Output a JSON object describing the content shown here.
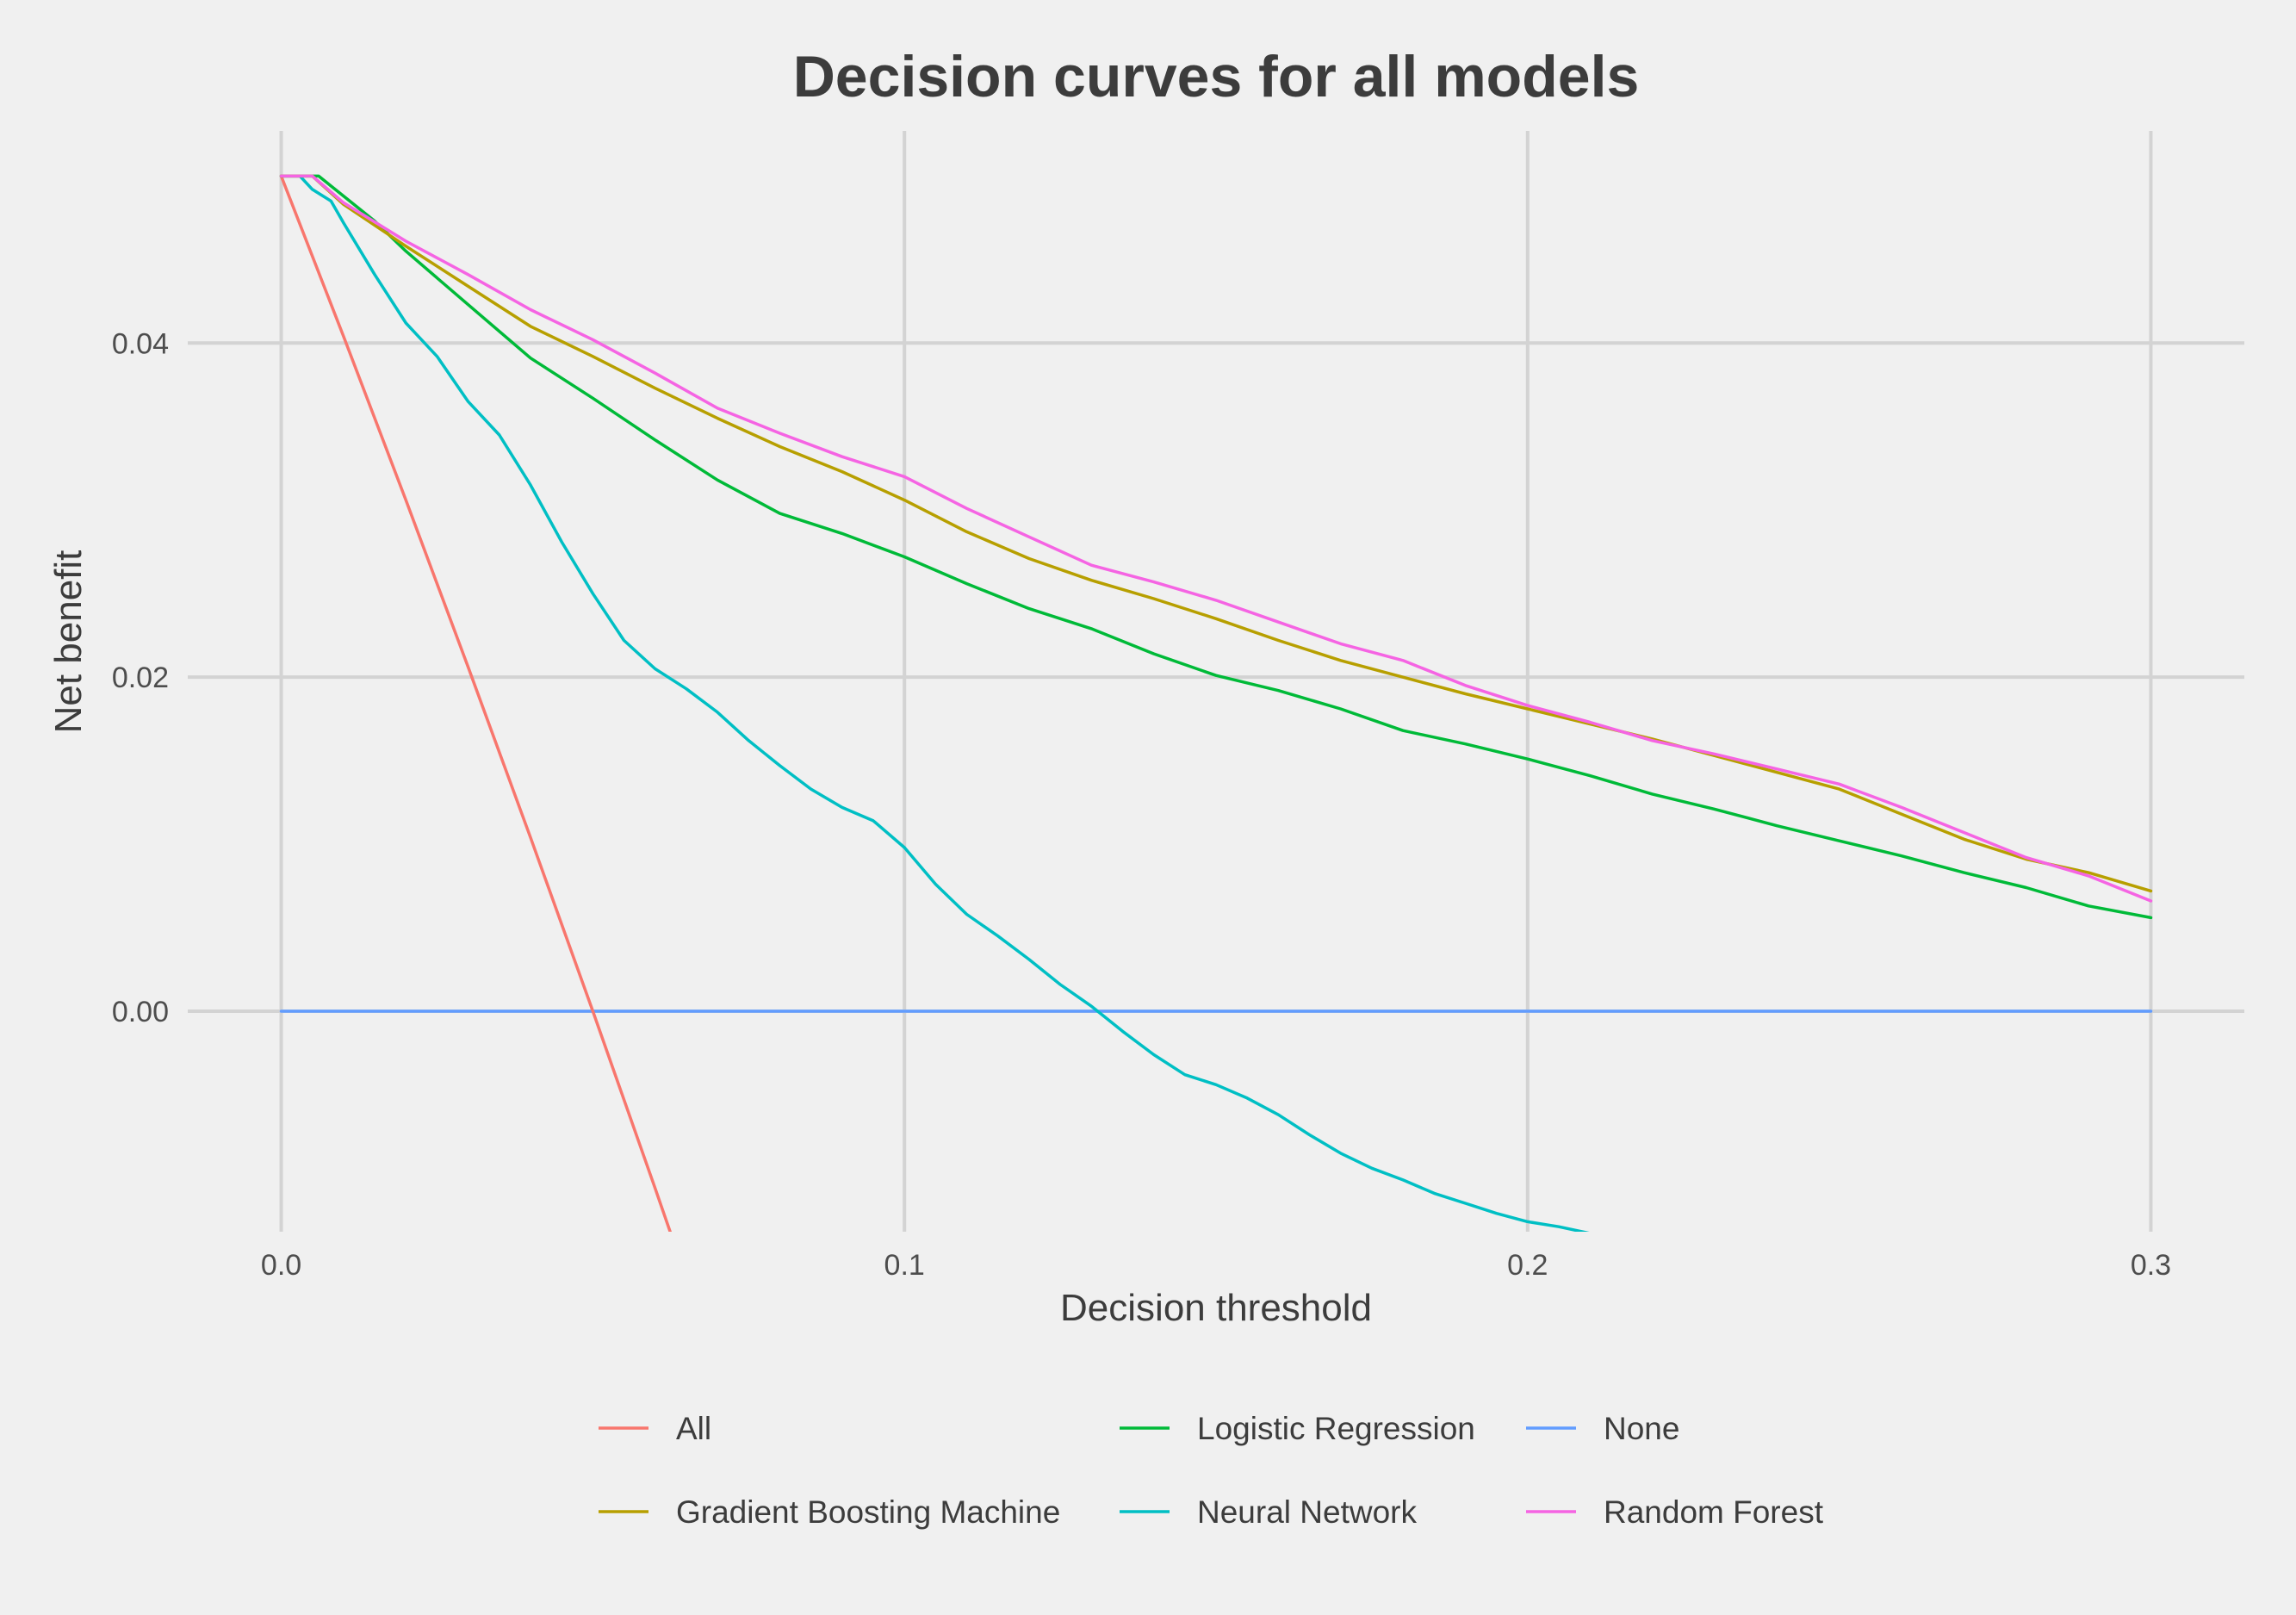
{
  "chart_data": {
    "type": "line",
    "title": "Decision curves for all models",
    "xlabel": "Decision threshold",
    "ylabel": "Net benefit",
    "xlim": [
      -0.015,
      0.315
    ],
    "ylim": [
      -0.0132,
      0.0527
    ],
    "x_ticks": [
      0.0,
      0.1,
      0.2,
      0.3
    ],
    "x_tick_labels": [
      "0.0",
      "0.1",
      "0.2",
      "0.3"
    ],
    "y_ticks": [
      0.0,
      0.02,
      0.04
    ],
    "y_tick_labels": [
      "0.00",
      "0.02",
      "0.04"
    ],
    "grid": true,
    "legend_position": "bottom",
    "series": [
      {
        "name": "All",
        "color": "#F8766D",
        "x": [
          0.0,
          0.01,
          0.02,
          0.03,
          0.04,
          0.05,
          0.06,
          0.0625
        ],
        "y": [
          0.05,
          0.0404,
          0.0306,
          0.0206,
          0.0104,
          0.0,
          -0.0106,
          -0.0133
        ]
      },
      {
        "name": "Gradient Boosting Machine",
        "color": "#B79F00",
        "x": [
          0.0,
          0.005,
          0.01,
          0.02,
          0.03,
          0.04,
          0.05,
          0.06,
          0.07,
          0.08,
          0.09,
          0.1,
          0.11,
          0.12,
          0.13,
          0.14,
          0.15,
          0.16,
          0.17,
          0.18,
          0.19,
          0.2,
          0.21,
          0.22,
          0.23,
          0.24,
          0.25,
          0.26,
          0.27,
          0.28,
          0.29,
          0.3
        ],
        "y": [
          0.05,
          0.05,
          0.0483,
          0.0458,
          0.0434,
          0.041,
          0.0392,
          0.0373,
          0.0355,
          0.0338,
          0.0323,
          0.0306,
          0.0287,
          0.0271,
          0.0258,
          0.0247,
          0.0235,
          0.0222,
          0.021,
          0.02,
          0.019,
          0.0181,
          0.0172,
          0.0163,
          0.0153,
          0.0143,
          0.0133,
          0.0118,
          0.0103,
          0.0091,
          0.0083,
          0.0072
        ]
      },
      {
        "name": "Logistic Regression",
        "color": "#00BA38",
        "x": [
          0.0,
          0.006,
          0.01,
          0.015,
          0.02,
          0.03,
          0.04,
          0.05,
          0.06,
          0.07,
          0.08,
          0.09,
          0.1,
          0.11,
          0.12,
          0.13,
          0.14,
          0.15,
          0.16,
          0.17,
          0.18,
          0.19,
          0.2,
          0.21,
          0.22,
          0.23,
          0.24,
          0.25,
          0.26,
          0.27,
          0.28,
          0.29,
          0.3
        ],
        "y": [
          0.05,
          0.05,
          0.0488,
          0.0473,
          0.0455,
          0.0423,
          0.0391,
          0.0367,
          0.0342,
          0.0318,
          0.0298,
          0.0286,
          0.0272,
          0.0256,
          0.0241,
          0.0229,
          0.0214,
          0.0201,
          0.0192,
          0.0181,
          0.0168,
          0.016,
          0.0151,
          0.0141,
          0.013,
          0.0121,
          0.0111,
          0.0102,
          0.0093,
          0.0083,
          0.0074,
          0.0063,
          0.0056
        ]
      },
      {
        "name": "Neural Network",
        "color": "#00BFC4",
        "x": [
          0.0,
          0.003,
          0.005,
          0.008,
          0.01,
          0.015,
          0.02,
          0.025,
          0.03,
          0.035,
          0.04,
          0.045,
          0.05,
          0.055,
          0.06,
          0.065,
          0.07,
          0.075,
          0.08,
          0.085,
          0.09,
          0.095,
          0.1,
          0.105,
          0.11,
          0.115,
          0.12,
          0.125,
          0.13,
          0.135,
          0.14,
          0.145,
          0.15,
          0.155,
          0.16,
          0.165,
          0.17,
          0.175,
          0.18,
          0.185,
          0.19,
          0.195,
          0.2,
          0.205,
          0.21,
          0.2135
        ],
        "y": [
          0.05,
          0.05,
          0.0492,
          0.0485,
          0.0472,
          0.0441,
          0.0412,
          0.0392,
          0.0365,
          0.0345,
          0.0315,
          0.0281,
          0.025,
          0.0222,
          0.0205,
          0.0193,
          0.0179,
          0.0162,
          0.0147,
          0.0133,
          0.0122,
          0.0114,
          0.0098,
          0.0076,
          0.0058,
          0.0045,
          0.0031,
          0.0016,
          0.0003,
          -0.0012,
          -0.0026,
          -0.0038,
          -0.0044,
          -0.0052,
          -0.0062,
          -0.0074,
          -0.0085,
          -0.0094,
          -0.0101,
          -0.0109,
          -0.0115,
          -0.0121,
          -0.0126,
          -0.0129,
          -0.0133,
          -0.0134
        ]
      },
      {
        "name": "None",
        "color": "#619CFF",
        "x": [
          0.0,
          0.3
        ],
        "y": [
          0.0,
          0.0
        ]
      },
      {
        "name": "Random Forest",
        "color": "#F564E3",
        "x": [
          0.0,
          0.005,
          0.01,
          0.02,
          0.03,
          0.04,
          0.05,
          0.06,
          0.07,
          0.08,
          0.09,
          0.1,
          0.11,
          0.12,
          0.13,
          0.14,
          0.15,
          0.16,
          0.17,
          0.18,
          0.19,
          0.2,
          0.21,
          0.22,
          0.23,
          0.24,
          0.25,
          0.26,
          0.27,
          0.28,
          0.29,
          0.3
        ],
        "y": [
          0.05,
          0.05,
          0.0484,
          0.0461,
          0.0441,
          0.042,
          0.0402,
          0.0382,
          0.0361,
          0.0346,
          0.0332,
          0.032,
          0.0301,
          0.0284,
          0.0267,
          0.0257,
          0.0246,
          0.0233,
          0.022,
          0.021,
          0.0195,
          0.0183,
          0.0173,
          0.0162,
          0.0154,
          0.0145,
          0.0136,
          0.0122,
          0.0107,
          0.0092,
          0.0081,
          0.0066
        ]
      }
    ],
    "legend": {
      "rows": [
        [
          "All",
          "Logistic Regression",
          "None"
        ],
        [
          "Gradient Boosting Machine",
          "Neural Network",
          "Random Forest"
        ]
      ]
    }
  }
}
